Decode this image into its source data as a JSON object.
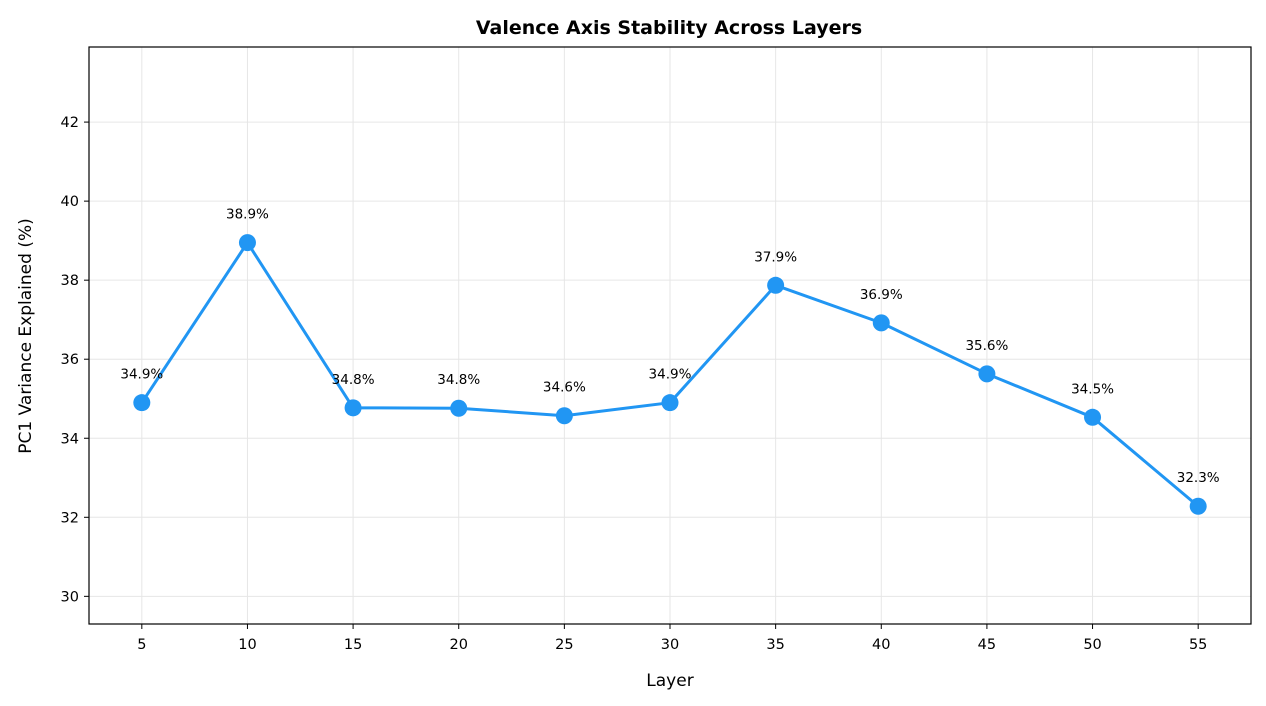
{
  "chart_data": {
    "type": "line",
    "title": "Valence Axis Stability Across Layers",
    "xlabel": "Layer",
    "ylabel": "PC1 Variance Explained (%)",
    "x": [
      5,
      10,
      15,
      20,
      25,
      30,
      35,
      40,
      45,
      50,
      55
    ],
    "series": [
      {
        "values": [
          34.9,
          38.95,
          34.77,
          34.76,
          34.57,
          34.9,
          37.87,
          36.92,
          35.63,
          34.53,
          32.28
        ],
        "labels": [
          "34.9%",
          "38.9%",
          "34.8%",
          "34.8%",
          "34.6%",
          "34.9%",
          "37.9%",
          "36.9%",
          "35.6%",
          "34.5%",
          "32.3%"
        ],
        "color": "#2196f3"
      }
    ],
    "xlim": [
      2.5,
      57.5
    ],
    "ylim": [
      29.3,
      43.9
    ],
    "xticks": [
      "5",
      "10",
      "15",
      "20",
      "25",
      "30",
      "35",
      "40",
      "45",
      "50",
      "55"
    ],
    "yticks": [
      "30",
      "32",
      "34",
      "36",
      "38",
      "40",
      "42"
    ],
    "grid": true,
    "legend": "none"
  }
}
